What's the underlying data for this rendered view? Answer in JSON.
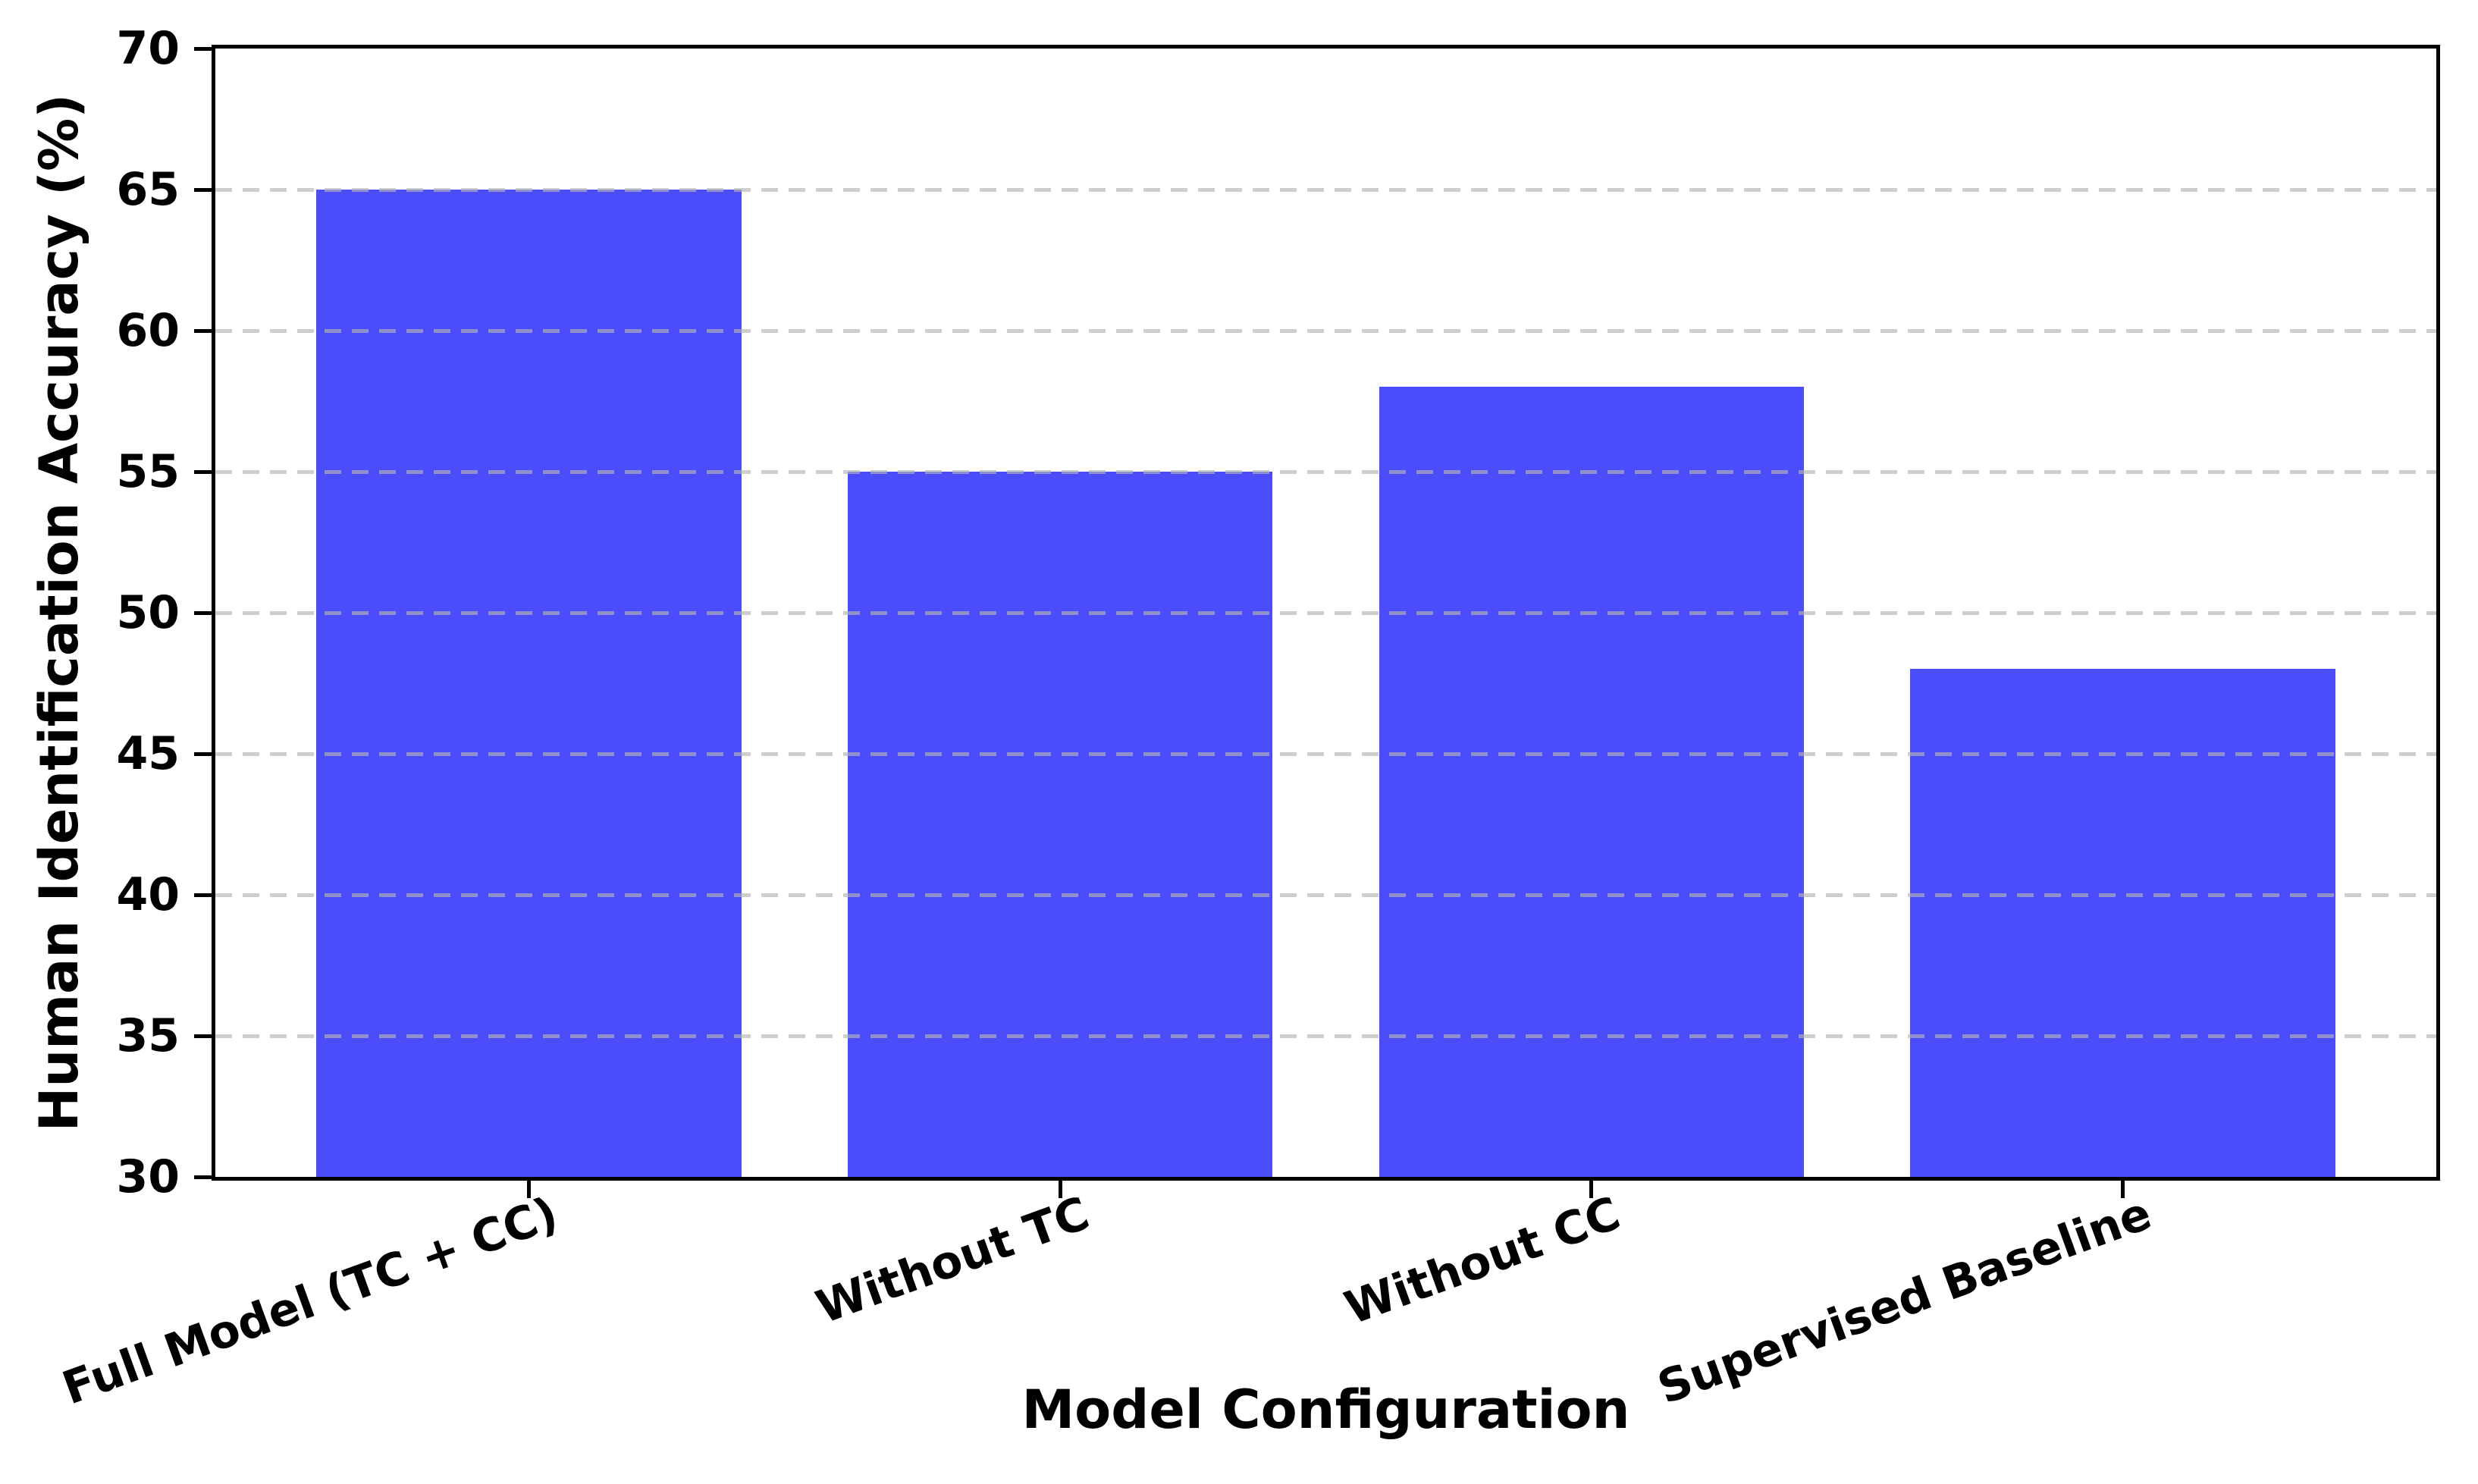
{
  "chart_data": {
    "type": "bar",
    "title": "",
    "xlabel": "Model Configuration",
    "ylabel": "Human Identification Accuracy (%)",
    "categories": [
      "Full Model (TC + CC)",
      "Without TC",
      "Without CC",
      "Supervised Baseline"
    ],
    "values": [
      65,
      55,
      58,
      48
    ],
    "ylim": [
      30,
      70
    ],
    "yticks": [
      30,
      35,
      40,
      45,
      50,
      55,
      60,
      65,
      70
    ],
    "grid": "horizontal, dashed, drawn above bars",
    "legend": "none",
    "bar_color": "#4B4DFB",
    "grid_color": "#B3B3B3",
    "axis_color": "#000000",
    "background_color": "#FFFFFF",
    "bar_width_fraction": 0.8,
    "x_tick_label_rotation_deg": 20
  }
}
